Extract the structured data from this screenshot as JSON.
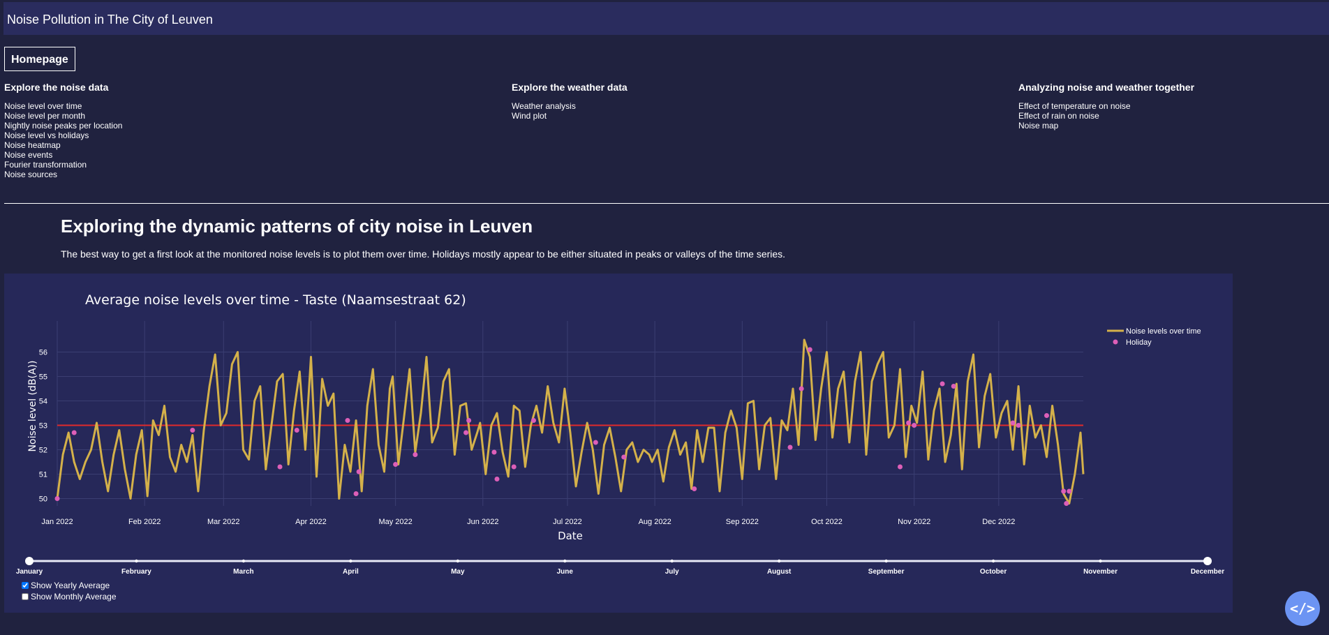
{
  "header": {
    "title": "Noise Pollution in The City of Leuven"
  },
  "home_button": "Homepage",
  "nav": [
    {
      "heading": "Explore the noise data",
      "links": [
        "Noise level over time",
        "Noise level per month",
        "Nightly noise peaks per location",
        "Noise level vs holidays",
        "Noise heatmap",
        "Noise events",
        "Fourier transformation",
        "Noise sources"
      ]
    },
    {
      "heading": "Explore the weather data",
      "links": [
        "Weather analysis",
        "Wind plot"
      ]
    },
    {
      "heading": "Analyzing noise and weather together",
      "links": [
        "Effect of temperature on noise",
        "Effect of rain on noise",
        "Noise map"
      ]
    }
  ],
  "main": {
    "heading": "Exploring the dynamic patterns of city noise in Leuven",
    "intro": "The best way to get a first look at the monitored noise levels is to plot them over time. Holidays mostly appear to be either situated in peaks or valleys of the time series."
  },
  "chart_data": {
    "type": "line",
    "title": "Average noise levels over time - Taste (Naamsestraat 62)",
    "xlabel": "Date",
    "ylabel": "Noise level (dB(A))",
    "x_range": [
      "2022-01-01",
      "2022-12-31"
    ],
    "ylim": [
      49.7,
      56.7
    ],
    "x_ticks": [
      "Jan 2022",
      "Feb 2022",
      "Mar 2022",
      "Apr 2022",
      "May 2022",
      "Jun 2022",
      "Jul 2022",
      "Aug 2022",
      "Sep 2022",
      "Oct 2022",
      "Nov 2022",
      "Dec 2022"
    ],
    "y_ticks": [
      50,
      51,
      52,
      53,
      54,
      55,
      56
    ],
    "grid": true,
    "legend_position": "top-right",
    "yearly_average": 53.0,
    "series": [
      {
        "name": "Noise levels over time",
        "color": "#d4b14a",
        "monthly_anchors": {
          "1": [
            [
              1,
              50.0
            ],
            [
              3,
              51.8
            ],
            [
              5,
              52.7
            ],
            [
              7,
              51.5
            ],
            [
              9,
              50.8
            ],
            [
              11,
              51.5
            ],
            [
              13,
              52.0
            ],
            [
              15,
              53.1
            ],
            [
              17,
              51.5
            ],
            [
              19,
              50.3
            ],
            [
              21,
              51.8
            ],
            [
              23,
              52.8
            ],
            [
              25,
              51.2
            ],
            [
              27,
              50.0
            ],
            [
              29,
              51.8
            ],
            [
              31,
              52.8
            ]
          ],
          "2": [
            [
              2,
              50.1
            ],
            [
              4,
              53.2
            ],
            [
              6,
              52.6
            ],
            [
              8,
              53.8
            ],
            [
              10,
              51.7
            ],
            [
              12,
              51.1
            ],
            [
              14,
              52.2
            ],
            [
              16,
              51.5
            ],
            [
              18,
              52.6
            ],
            [
              20,
              50.3
            ],
            [
              22,
              52.8
            ],
            [
              24,
              54.6
            ],
            [
              26,
              55.9
            ],
            [
              28,
              53.0
            ]
          ],
          "3": [
            [
              2,
              53.5
            ],
            [
              4,
              55.5
            ],
            [
              6,
              56.0
            ],
            [
              8,
              52.0
            ],
            [
              10,
              51.6
            ],
            [
              12,
              54.0
            ],
            [
              14,
              54.6
            ],
            [
              16,
              51.2
            ],
            [
              18,
              53.0
            ],
            [
              20,
              54.8
            ],
            [
              22,
              55.1
            ],
            [
              24,
              51.4
            ],
            [
              26,
              53.6
            ],
            [
              28,
              55.2
            ],
            [
              30,
              52.0
            ]
          ],
          "4": [
            [
              1,
              55.8
            ],
            [
              3,
              50.9
            ],
            [
              5,
              54.9
            ],
            [
              7,
              53.8
            ],
            [
              9,
              54.3
            ],
            [
              11,
              50.0
            ],
            [
              13,
              52.2
            ],
            [
              15,
              51.1
            ],
            [
              17,
              53.2
            ],
            [
              19,
              50.3
            ],
            [
              21,
              53.8
            ],
            [
              23,
              55.3
            ],
            [
              25,
              52.2
            ],
            [
              27,
              51.1
            ],
            [
              29,
              54.5
            ],
            [
              30,
              55.0
            ]
          ],
          "5": [
            [
              2,
              51.4
            ],
            [
              4,
              53.3
            ],
            [
              6,
              55.3
            ],
            [
              8,
              51.9
            ],
            [
              10,
              53.5
            ],
            [
              12,
              55.8
            ],
            [
              14,
              52.3
            ],
            [
              16,
              52.9
            ],
            [
              18,
              54.8
            ],
            [
              20,
              55.3
            ],
            [
              22,
              51.8
            ],
            [
              24,
              53.8
            ],
            [
              26,
              53.9
            ],
            [
              28,
              52.0
            ],
            [
              30,
              52.7
            ],
            [
              31,
              53.1
            ]
          ],
          "6": [
            [
              2,
              51.0
            ],
            [
              4,
              53.0
            ],
            [
              6,
              53.5
            ],
            [
              8,
              51.9
            ],
            [
              10,
              50.9
            ],
            [
              12,
              53.8
            ],
            [
              14,
              53.6
            ],
            [
              16,
              51.3
            ],
            [
              18,
              53.0
            ],
            [
              20,
              53.8
            ],
            [
              22,
              52.7
            ],
            [
              24,
              54.6
            ],
            [
              26,
              53.1
            ],
            [
              28,
              52.3
            ],
            [
              30,
              54.5
            ]
          ],
          "7": [
            [
              2,
              52.7
            ],
            [
              4,
              50.5
            ],
            [
              6,
              51.9
            ],
            [
              8,
              53.1
            ],
            [
              10,
              52.0
            ],
            [
              12,
              50.2
            ],
            [
              14,
              52.2
            ],
            [
              16,
              52.9
            ],
            [
              18,
              51.7
            ],
            [
              20,
              50.3
            ],
            [
              22,
              52.0
            ],
            [
              24,
              52.3
            ],
            [
              26,
              51.5
            ],
            [
              28,
              52.0
            ],
            [
              30,
              51.8
            ],
            [
              31,
              51.5
            ]
          ],
          "8": [
            [
              2,
              52.0
            ],
            [
              4,
              50.7
            ],
            [
              6,
              52.1
            ],
            [
              8,
              52.8
            ],
            [
              10,
              51.8
            ],
            [
              12,
              52.3
            ],
            [
              14,
              50.4
            ],
            [
              16,
              52.8
            ],
            [
              18,
              51.5
            ],
            [
              20,
              52.9
            ],
            [
              22,
              52.9
            ],
            [
              24,
              50.3
            ],
            [
              26,
              52.7
            ],
            [
              28,
              53.6
            ],
            [
              30,
              52.9
            ]
          ],
          "9": [
            [
              1,
              50.8
            ],
            [
              3,
              53.9
            ],
            [
              5,
              54.0
            ],
            [
              7,
              51.2
            ],
            [
              9,
              53.0
            ],
            [
              11,
              53.3
            ],
            [
              13,
              50.8
            ],
            [
              15,
              53.2
            ],
            [
              17,
              52.8
            ],
            [
              19,
              54.5
            ],
            [
              21,
              52.2
            ],
            [
              23,
              56.5
            ],
            [
              25,
              55.8
            ],
            [
              27,
              52.4
            ],
            [
              29,
              54.5
            ]
          ],
          "10": [
            [
              1,
              56.0
            ],
            [
              3,
              52.5
            ],
            [
              5,
              54.5
            ],
            [
              7,
              55.2
            ],
            [
              9,
              52.3
            ],
            [
              11,
              54.8
            ],
            [
              13,
              56.0
            ],
            [
              15,
              51.8
            ],
            [
              17,
              54.8
            ],
            [
              19,
              55.5
            ],
            [
              21,
              56.0
            ],
            [
              23,
              52.5
            ],
            [
              25,
              53.0
            ],
            [
              27,
              55.3
            ],
            [
              29,
              51.7
            ],
            [
              31,
              53.8
            ]
          ],
          "11": [
            [
              2,
              53.1
            ],
            [
              4,
              55.2
            ],
            [
              6,
              51.6
            ],
            [
              8,
              53.6
            ],
            [
              10,
              54.5
            ],
            [
              12,
              51.5
            ],
            [
              14,
              52.6
            ],
            [
              16,
              54.7
            ],
            [
              18,
              51.2
            ],
            [
              20,
              54.8
            ],
            [
              22,
              55.9
            ],
            [
              24,
              52.1
            ],
            [
              26,
              54.2
            ],
            [
              28,
              55.1
            ],
            [
              30,
              52.5
            ]
          ],
          "12": [
            [
              2,
              53.5
            ],
            [
              4,
              54.0
            ],
            [
              6,
              52.0
            ],
            [
              8,
              54.6
            ],
            [
              10,
              51.4
            ],
            [
              12,
              53.8
            ],
            [
              14,
              52.5
            ],
            [
              16,
              53.0
            ],
            [
              18,
              51.7
            ],
            [
              20,
              53.8
            ],
            [
              22,
              52.2
            ],
            [
              24,
              50.2
            ],
            [
              26,
              49.8
            ],
            [
              28,
              51.0
            ],
            [
              30,
              52.7
            ],
            [
              31,
              51.0
            ]
          ]
        }
      },
      {
        "name": "Holiday",
        "color": "#dd5fb8",
        "points": [
          [
            "2022-01-01",
            50.0
          ],
          [
            "2022-01-07",
            52.7
          ],
          [
            "2022-02-18",
            52.8
          ],
          [
            "2022-03-21",
            51.3
          ],
          [
            "2022-03-27",
            52.8
          ],
          [
            "2022-04-14",
            53.2
          ],
          [
            "2022-04-17",
            50.2
          ],
          [
            "2022-04-18",
            51.1
          ],
          [
            "2022-05-01",
            51.4
          ],
          [
            "2022-05-08",
            51.8
          ],
          [
            "2022-05-26",
            52.7
          ],
          [
            "2022-05-27",
            53.2
          ],
          [
            "2022-06-05",
            51.9
          ],
          [
            "2022-06-06",
            50.8
          ],
          [
            "2022-06-12",
            51.3
          ],
          [
            "2022-06-19",
            53.2
          ],
          [
            "2022-07-11",
            52.3
          ],
          [
            "2022-07-21",
            51.7
          ],
          [
            "2022-08-15",
            50.4
          ],
          [
            "2022-09-18",
            52.1
          ],
          [
            "2022-09-22",
            54.5
          ],
          [
            "2022-09-25",
            56.1
          ],
          [
            "2022-10-27",
            51.3
          ],
          [
            "2022-10-30",
            53.1
          ],
          [
            "2022-11-01",
            53.0
          ],
          [
            "2022-11-11",
            54.7
          ],
          [
            "2022-11-15",
            54.6
          ],
          [
            "2022-12-06",
            53.1
          ],
          [
            "2022-12-08",
            53.0
          ],
          [
            "2022-12-18",
            53.4
          ],
          [
            "2022-12-24",
            50.3
          ],
          [
            "2022-12-25",
            49.8
          ],
          [
            "2022-12-26",
            50.3
          ]
        ]
      },
      {
        "name": "Yearly average",
        "color": "#e02a2a"
      }
    ]
  },
  "month_slider": {
    "labels": [
      "January",
      "February",
      "March",
      "April",
      "May",
      "June",
      "July",
      "August",
      "September",
      "October",
      "November",
      "December"
    ],
    "selected_range": [
      "January",
      "December"
    ]
  },
  "controls": [
    {
      "label": "Show Yearly Average",
      "checked": true
    },
    {
      "label": "Show Monthly Average",
      "checked": false
    }
  ],
  "fab_label": "</>",
  "colors": {
    "page_bg": "#20223f",
    "panel_bg": "#262859",
    "header_bg": "#2a2c5e",
    "fab": "#6c94f3"
  }
}
